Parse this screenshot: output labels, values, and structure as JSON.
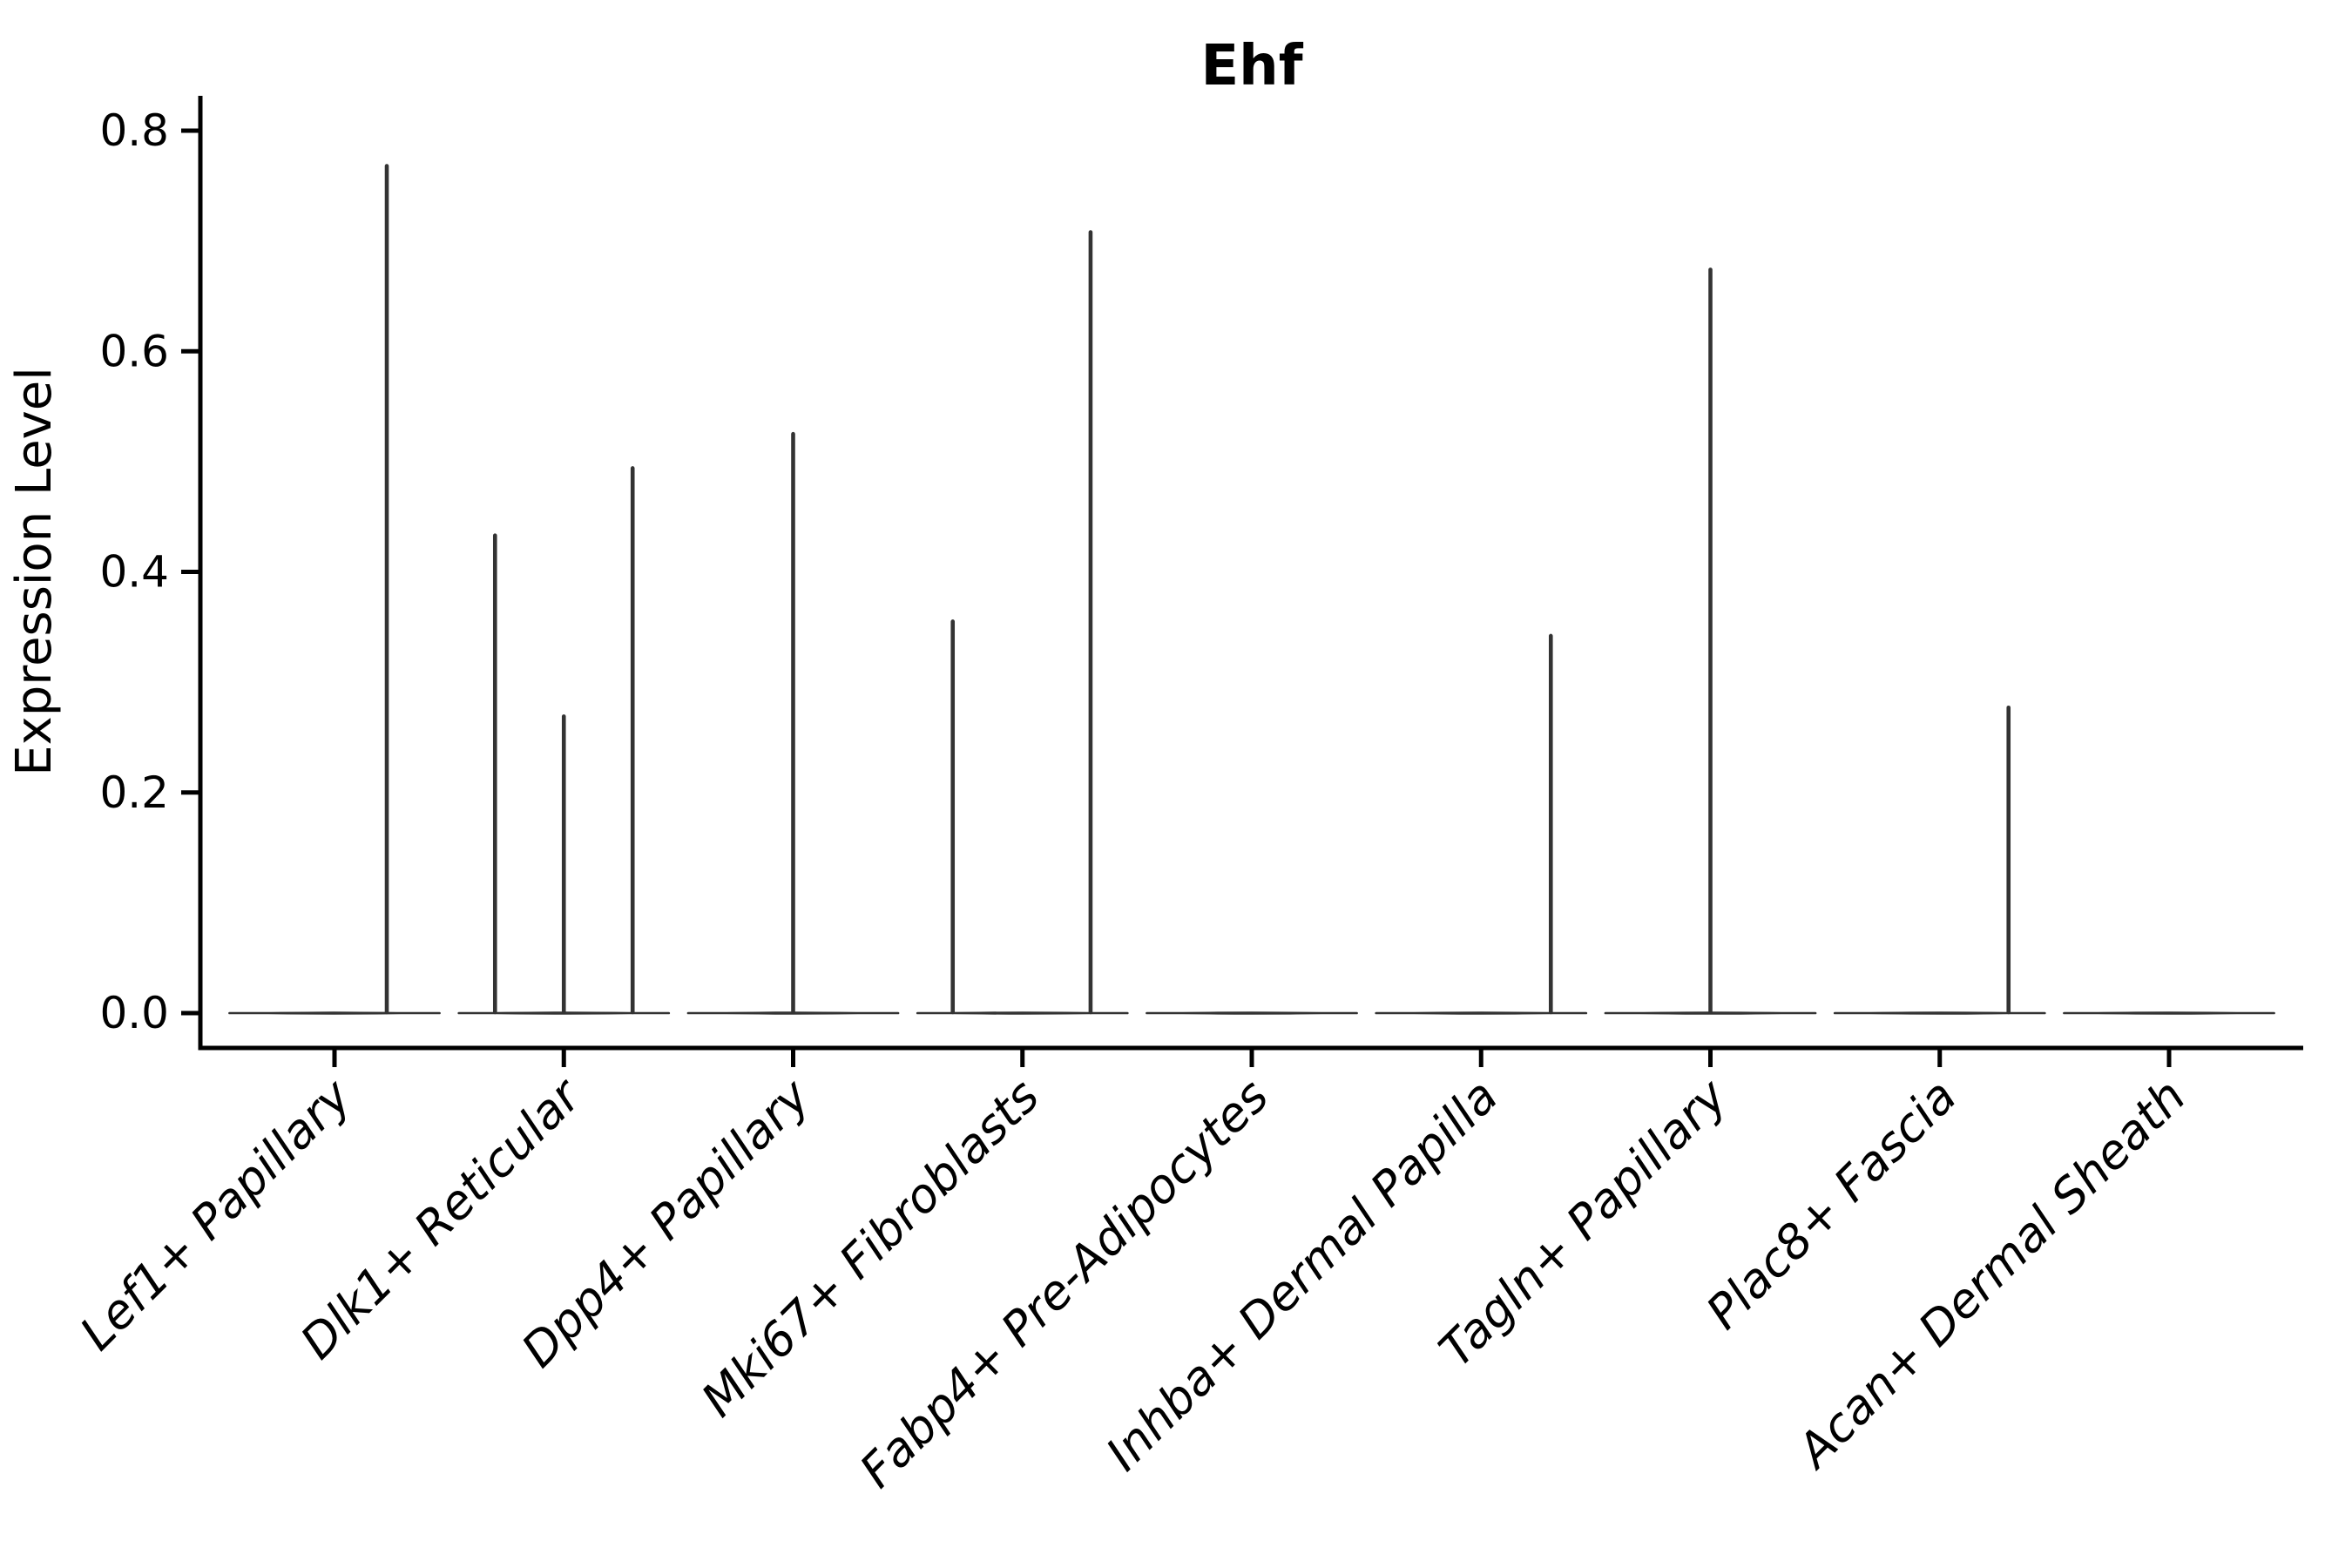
{
  "title": "Ehf",
  "chart_data": {
    "type": "violin",
    "title": "Ehf",
    "xlabel": "",
    "ylabel": "Expression Level",
    "ylim": [
      -0.032,
      0.832
    ],
    "yticks": [
      0.0,
      0.2,
      0.4,
      0.6,
      0.8
    ],
    "grid": false,
    "legend": null,
    "categories": [
      "Lef1+ Papillary",
      "Dlk1+ Reticular",
      "Dpp4+ Papillary",
      "Mki67+ Fibroblasts",
      "Fabp4+ Pre-Adipocytes",
      "Inhba+ Dermal Papilla",
      "Tagln+ Papillary",
      "Plac8+ Fascia",
      "Acan+ Dermal Sheath"
    ],
    "baseline_halfwidth": 0.458,
    "violins": [
      {
        "category": "Lef1+ Papillary",
        "spikes": [
          {
            "offset": 0.228,
            "value": 0.768
          }
        ]
      },
      {
        "category": "Dlk1+ Reticular",
        "spikes": [
          {
            "offset": -0.3,
            "value": 0.433
          },
          {
            "offset": 0.0,
            "value": 0.269
          },
          {
            "offset": 0.3,
            "value": 0.494
          }
        ]
      },
      {
        "category": "Dpp4+ Papillary",
        "spikes": [
          {
            "offset": 0.0,
            "value": 0.525
          }
        ]
      },
      {
        "category": "Mki67+ Fibroblasts",
        "spikes": [
          {
            "offset": -0.304,
            "value": 0.355
          },
          {
            "offset": 0.297,
            "value": 0.708
          }
        ]
      },
      {
        "category": "Fabp4+ Pre-Adipocytes",
        "spikes": []
      },
      {
        "category": "Inhba+ Dermal Papilla",
        "spikes": [
          {
            "offset": 0.304,
            "value": 0.342
          }
        ]
      },
      {
        "category": "Tagln+ Papillary",
        "spikes": [
          {
            "offset": 0.0,
            "value": 0.674
          }
        ]
      },
      {
        "category": "Plac8+ Fascia",
        "spikes": [
          {
            "offset": 0.3,
            "value": 0.277
          }
        ]
      },
      {
        "category": "Acan+ Dermal Sheath",
        "spikes": []
      }
    ],
    "colors": {
      "violin": "#333333",
      "axis": "#000000",
      "background": "#ffffff"
    }
  }
}
